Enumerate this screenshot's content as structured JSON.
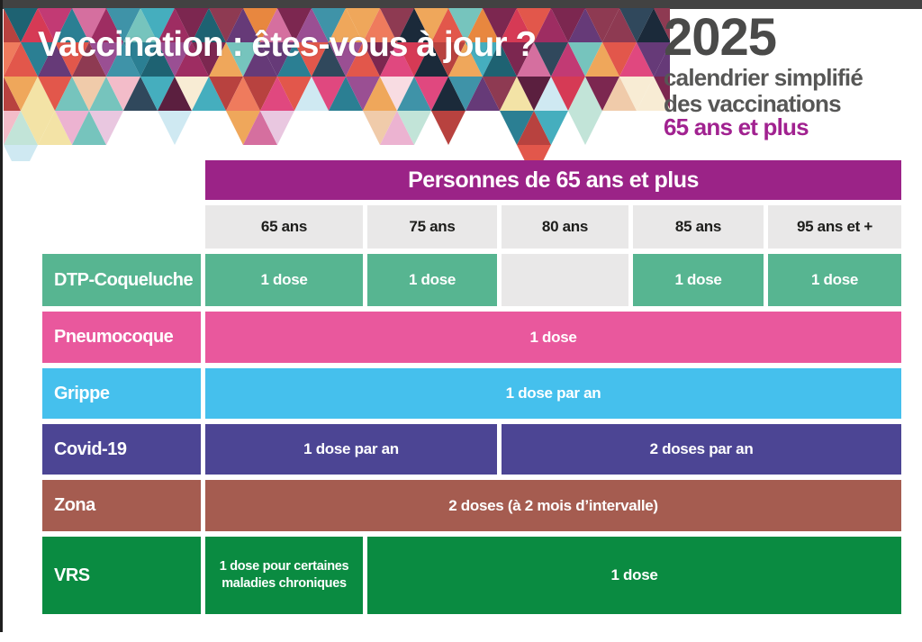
{
  "header": {
    "title": "Vaccination : êtes-vous à jour ?",
    "year": "2025",
    "subtitle_line1": "calendrier simplifié",
    "subtitle_line2": "des vaccinations",
    "audience": "65 ans et plus",
    "mosaic_palette": [
      "#d63a55",
      "#e2574b",
      "#ef7b5d",
      "#e0487f",
      "#c23a74",
      "#9e2d62",
      "#7c2750",
      "#3f93a8",
      "#2b7f93",
      "#1e6272",
      "#45aebe",
      "#76c4bd",
      "#e8873f",
      "#efa75b",
      "#9a4f93",
      "#663a78",
      "#b8423f",
      "#8e3a52",
      "#30485c",
      "#d56f9f",
      "#5b1f3f",
      "#1b2a3a"
    ],
    "mosaic_pastel": [
      "#f3bcc9",
      "#f8dce2",
      "#f3e3a6",
      "#c2e4d8",
      "#f0cbaa",
      "#ecb3d1",
      "#cfe9f2",
      "#f8ecd4",
      "#e9c7e0"
    ]
  },
  "colors": {
    "top_bar": "#424242",
    "left_edge": "#1f1f1f",
    "year_text": "#4a4a49",
    "subtitle_text": "#575756",
    "audience_text": "#a12290",
    "table_header_bg": "#9b2387",
    "column_header_bg": "#e9e8e8",
    "column_header_text": "#1d1d1b",
    "empty_cell_bg": "#e9e8e8",
    "cell_text": "#ffffff"
  },
  "table": {
    "title": "Personnes de 65 ans et plus",
    "columns": [
      "65 ans",
      "75 ans",
      "80 ans",
      "85 ans",
      "95 ans et +"
    ],
    "rows": [
      {
        "label": "DTP-Coqueluche",
        "color": "#57b591",
        "cells": [
          {
            "c": 0,
            "span": 1,
            "text": "1 dose"
          },
          {
            "c": 1,
            "span": 1,
            "text": "1 dose"
          },
          {
            "c": 2,
            "span": 1,
            "text": "",
            "empty": true
          },
          {
            "c": 3,
            "span": 1,
            "text": "1 dose"
          },
          {
            "c": 4,
            "span": 1,
            "text": "1 dose"
          }
        ]
      },
      {
        "label": "Pneumocoque",
        "color": "#e9589d",
        "cells": [
          {
            "c": 0,
            "span": 5,
            "text": "1 dose"
          }
        ]
      },
      {
        "label": "Grippe",
        "color": "#45c0ed",
        "cells": [
          {
            "c": 0,
            "span": 5,
            "text": "1 dose par an"
          }
        ]
      },
      {
        "label": "Covid-19",
        "color": "#4c4594",
        "cells": [
          {
            "c": 0,
            "span": 2,
            "text": "1 dose par an"
          },
          {
            "c": 2,
            "span": 3,
            "text": "2 doses par an"
          }
        ]
      },
      {
        "label": "Zona",
        "color": "#a55c50",
        "cells": [
          {
            "c": 0,
            "span": 5,
            "text": "2 doses (à 2 mois d’intervalle)"
          }
        ]
      },
      {
        "label": "VRS",
        "color": "#0a8b41",
        "cells": [
          {
            "c": 0,
            "span": 1,
            "text": "1 dose pour certaines maladies chroniques",
            "small": true
          },
          {
            "c": 1,
            "span": 4,
            "text": "1 dose"
          }
        ]
      }
    ]
  }
}
